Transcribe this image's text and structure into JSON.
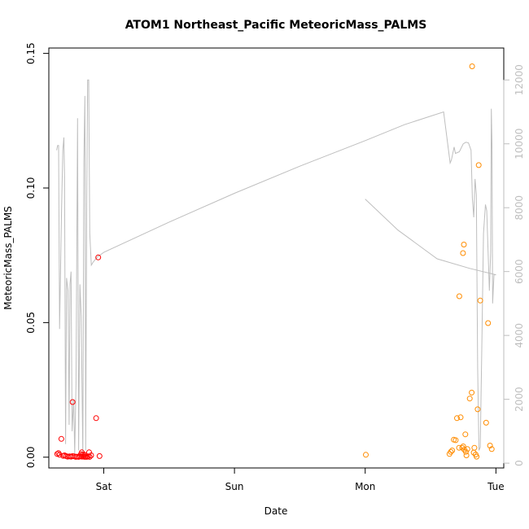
{
  "chart_data": {
    "type": "scatter",
    "title": "ATOM1 Northeast_Pacific MeteoricMass_PALMS",
    "xlabel": "Date",
    "ylabel": "MeteoricMass_PALMS",
    "x_tick_labels": [
      "Sat",
      "Sun",
      "Mon",
      "Tue"
    ],
    "x_tick_days": [
      1,
      2,
      3,
      4
    ],
    "xlim_days": [
      0.58,
      4.06
    ],
    "y_left": {
      "ylim": [
        -0.004,
        0.152
      ],
      "ticks": [
        0.0,
        0.05,
        0.1,
        0.15
      ],
      "tick_labels": [
        "0.00",
        "0.05",
        "0.10",
        "0.15"
      ]
    },
    "y_right": {
      "ylim": [
        -150,
        13000
      ],
      "ticks": [
        0,
        2000,
        4000,
        6000,
        8000,
        10000,
        12000
      ],
      "tick_labels": [
        "0",
        "2000",
        "4000",
        "6000",
        "8000",
        "10000",
        "12000"
      ],
      "color": "#bebebe"
    },
    "altitude_track": {
      "color": "#bebebe",
      "axis": "right",
      "segments": [
        [
          [
            0.64,
            9800
          ],
          [
            0.647,
            9950
          ],
          [
            0.655,
            9950
          ],
          [
            0.662,
            4200
          ],
          [
            0.677,
            7900
          ],
          [
            0.687,
            9800
          ],
          [
            0.695,
            10200
          ],
          [
            0.7,
            9000
          ],
          [
            0.708,
            600
          ],
          [
            0.716,
            5800
          ],
          [
            0.727,
            5400
          ],
          [
            0.735,
            1200
          ],
          [
            0.742,
            5600
          ],
          [
            0.75,
            6000
          ],
          [
            0.758,
            1000
          ],
          [
            0.77,
            2000
          ],
          [
            0.778,
            300
          ],
          [
            0.788,
            2500
          ],
          [
            0.8,
            10800
          ],
          [
            0.808,
            400
          ],
          [
            0.818,
            5600
          ],
          [
            0.828,
            4600
          ],
          [
            0.84,
            200
          ],
          [
            0.848,
            9400
          ],
          [
            0.856,
            11500
          ],
          [
            0.862,
            400
          ],
          [
            0.87,
            8300
          ],
          [
            0.877,
            12000
          ],
          [
            0.885,
            12000
          ],
          [
            0.893,
            7200
          ],
          [
            0.905,
            6200
          ],
          [
            0.92,
            6300
          ],
          [
            0.95,
            6450
          ],
          [
            1.0,
            6600
          ],
          [
            1.5,
            7550
          ],
          [
            2.0,
            8450
          ],
          [
            2.5,
            9300
          ],
          [
            3.0,
            10100
          ],
          [
            3.3,
            10600
          ],
          [
            3.6,
            11000
          ],
          [
            3.65,
            9400
          ],
          [
            3.66,
            9500
          ],
          [
            3.68,
            9900
          ],
          [
            3.69,
            9700
          ],
          [
            3.72,
            9750
          ],
          [
            3.75,
            10000
          ],
          [
            3.77,
            10050
          ],
          [
            3.79,
            10030
          ],
          [
            3.81,
            9800
          ],
          [
            3.82,
            8300
          ],
          [
            3.83,
            7700
          ],
          [
            3.84,
            8900
          ],
          [
            3.85,
            8400
          ],
          [
            3.86,
            3000
          ],
          [
            3.87,
            400
          ],
          [
            3.88,
            500
          ],
          [
            3.89,
            3100
          ],
          [
            3.905,
            7200
          ],
          [
            3.92,
            8100
          ],
          [
            3.93,
            7900
          ],
          [
            3.95,
            5400
          ],
          [
            3.96,
            6600
          ],
          [
            3.965,
            11100
          ],
          [
            3.97,
            10000
          ],
          [
            3.975,
            5000
          ],
          [
            3.985,
            5900
          ],
          [
            4.0,
            5900
          ]
        ],
        [
          [
            3.0,
            8270
          ],
          [
            3.25,
            7300
          ],
          [
            3.55,
            6400
          ],
          [
            3.8,
            6100
          ],
          [
            4.0,
            5900
          ]
        ]
      ]
    },
    "series": [
      {
        "color": "#ff0000",
        "axis": "left",
        "points": [
          [
            0.644,
            0.0012
          ],
          [
            0.654,
            0.0015
          ],
          [
            0.662,
            0.0009
          ],
          [
            0.676,
            0.0068
          ],
          [
            0.69,
            0.0005
          ],
          [
            0.7,
            0.0007
          ],
          [
            0.712,
            0.0004
          ],
          [
            0.724,
            0.0002
          ],
          [
            0.738,
            0.0003
          ],
          [
            0.75,
            0.0002
          ],
          [
            0.762,
            0.0004
          ],
          [
            0.775,
            0.0003
          ],
          [
            0.786,
            0.0001
          ],
          [
            0.796,
            0.0002
          ],
          [
            0.808,
            0.0001
          ],
          [
            0.82,
            0.0003
          ],
          [
            0.834,
            0.0002
          ],
          [
            0.846,
            0.0002
          ],
          [
            0.856,
            0.0001
          ],
          [
            0.862,
            0.0002
          ],
          [
            0.87,
            0.0001
          ],
          [
            0.88,
            0.0003
          ],
          [
            0.892,
            0.0001
          ],
          [
            0.904,
            0.0007
          ],
          [
            0.84,
            0.001
          ],
          [
            0.852,
            0.0009
          ],
          [
            0.826,
            0.0011
          ],
          [
            0.762,
            0.0205
          ],
          [
            0.832,
            0.0018
          ],
          [
            0.888,
            0.0018
          ],
          [
            0.968,
            0.0004
          ],
          [
            0.942,
            0.0145
          ],
          [
            0.958,
            0.0742
          ]
        ]
      },
      {
        "color": "#ff8c00",
        "axis": "left",
        "points": [
          [
            3.005,
            0.0009
          ],
          [
            3.645,
            0.0012
          ],
          [
            3.655,
            0.002
          ],
          [
            3.665,
            0.0025
          ],
          [
            3.678,
            0.0065
          ],
          [
            3.692,
            0.0063
          ],
          [
            3.702,
            0.0145
          ],
          [
            3.718,
            0.0035
          ],
          [
            3.73,
            0.0148
          ],
          [
            3.742,
            0.0035
          ],
          [
            3.75,
            0.004
          ],
          [
            3.758,
            0.0028
          ],
          [
            3.766,
            0.0085
          ],
          [
            3.774,
            0.0007
          ],
          [
            3.782,
            0.003
          ],
          [
            3.72,
            0.0598
          ],
          [
            3.748,
            0.0758
          ],
          [
            3.755,
            0.079
          ],
          [
            3.8,
            0.0218
          ],
          [
            3.815,
            0.024
          ],
          [
            3.835,
            0.0035
          ],
          [
            3.845,
            0.001
          ],
          [
            3.852,
            0.0002
          ],
          [
            3.86,
            0.0178
          ],
          [
            3.868,
            0.1085
          ],
          [
            3.88,
            0.0582
          ],
          [
            3.818,
            0.1452
          ],
          [
            3.925,
            0.0128
          ],
          [
            3.94,
            0.0498
          ],
          [
            3.955,
            0.0043
          ],
          [
            3.968,
            0.003
          ],
          [
            3.77,
            0.002
          ],
          [
            3.83,
            0.0017
          ]
        ]
      }
    ]
  }
}
